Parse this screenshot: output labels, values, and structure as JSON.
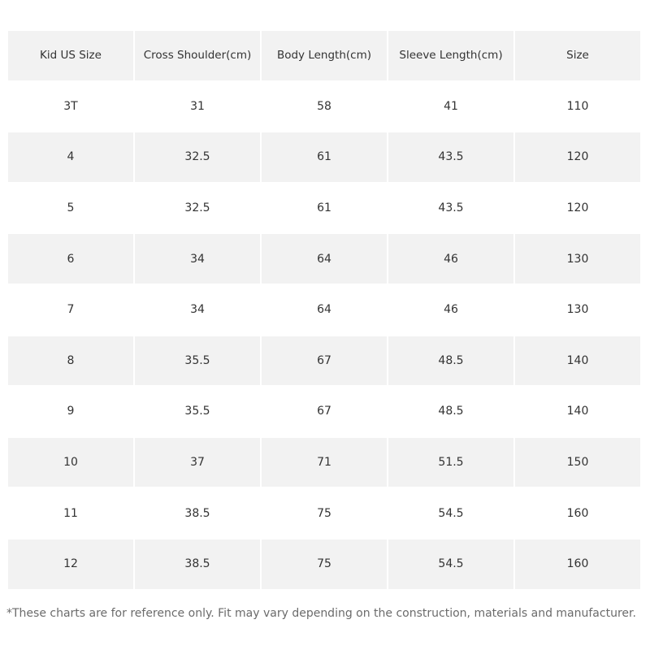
{
  "table": {
    "headers": [
      "Kid US Size",
      "Cross Shoulder(cm)",
      "Body Length(cm)",
      "Sleeve Length(cm)",
      "Size"
    ],
    "rows": [
      [
        "3T",
        "31",
        "58",
        "41",
        "110"
      ],
      [
        "4",
        "32.5",
        "61",
        "43.5",
        "120"
      ],
      [
        "5",
        "32.5",
        "61",
        "43.5",
        "120"
      ],
      [
        "6",
        "34",
        "64",
        "46",
        "130"
      ],
      [
        "7",
        "34",
        "64",
        "46",
        "130"
      ],
      [
        "8",
        "35.5",
        "67",
        "48.5",
        "140"
      ],
      [
        "9",
        "35.5",
        "67",
        "48.5",
        "140"
      ],
      [
        "10",
        "37",
        "71",
        "51.5",
        "150"
      ],
      [
        "11",
        "38.5",
        "75",
        "54.5",
        "160"
      ],
      [
        "12",
        "38.5",
        "75",
        "54.5",
        "160"
      ]
    ]
  },
  "footnote": "*These charts are for reference only. Fit may vary depending on the construction, materials and manufacturer.",
  "colors": {
    "header_bg": "#f2f2f2",
    "stripe_bg": "#f2f2f2",
    "text": "#333333",
    "footnote_text": "#6b6b6b"
  }
}
